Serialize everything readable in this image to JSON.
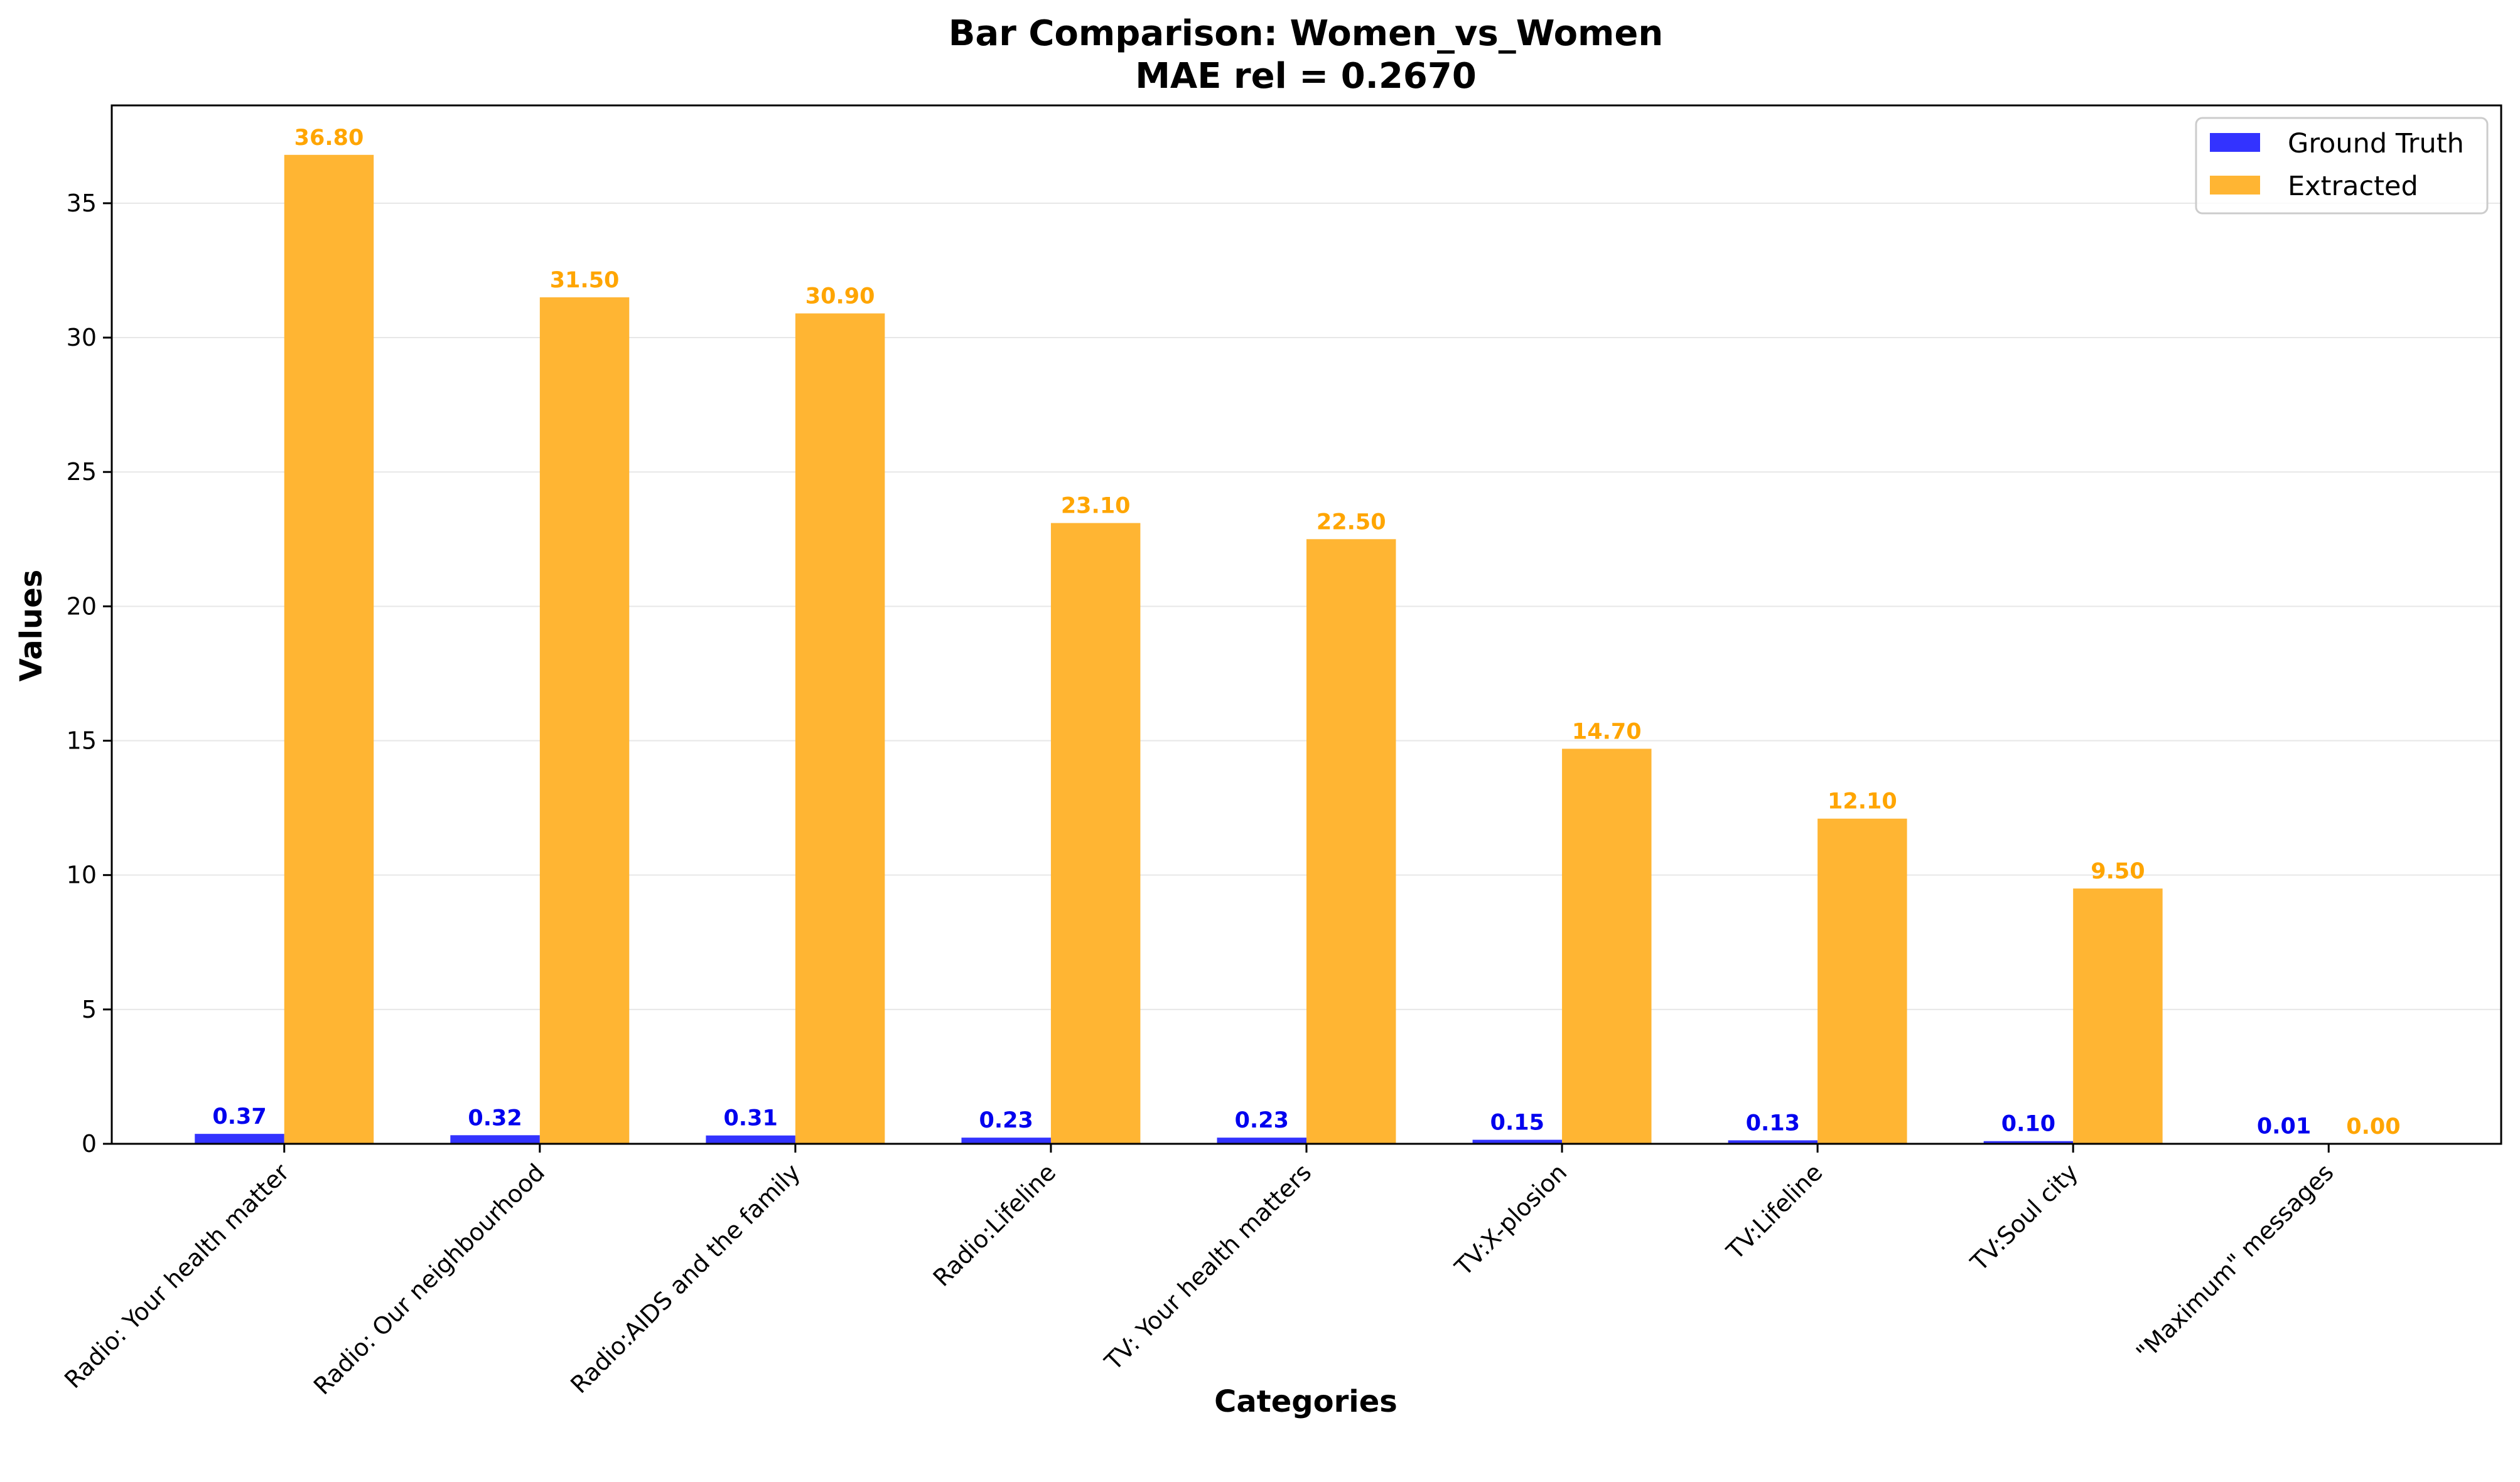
{
  "chart_data": {
    "type": "bar",
    "title": "Bar Comparison: Women_vs_Women",
    "subtitle": "MAE rel = 0.2670",
    "xlabel": "Categories",
    "ylabel": "Values",
    "ylim": [
      0,
      38.64
    ],
    "yticks": [
      0,
      5,
      10,
      15,
      20,
      25,
      30,
      35
    ],
    "grid": true,
    "legend_position": "top-right",
    "categories": [
      "Radio: Your health matter",
      "Radio: Our neighbourhood",
      "Radio:AIDS and the family",
      "Radio:Lifeline",
      "TV: Your health matters",
      "TV:X-plosion",
      "TV:Lifeline",
      "TV:Soul city",
      "\"Maximum\" messages"
    ],
    "series": [
      {
        "name": "Ground Truth",
        "color": "#3333ff",
        "label_color": "#0000ee",
        "values": [
          0.37,
          0.32,
          0.31,
          0.23,
          0.23,
          0.15,
          0.13,
          0.1,
          0.01
        ],
        "value_labels": [
          "0.37",
          "0.32",
          "0.31",
          "0.23",
          "0.23",
          "0.15",
          "0.13",
          "0.10",
          "0.01"
        ]
      },
      {
        "name": "Extracted",
        "color": "#ffb533",
        "label_color": "#ffa500",
        "values": [
          36.8,
          31.5,
          30.9,
          23.1,
          22.5,
          14.7,
          12.1,
          9.5,
          0.0
        ],
        "value_labels": [
          "36.80",
          "31.50",
          "30.90",
          "23.10",
          "22.50",
          "14.70",
          "12.10",
          "9.50",
          "0.00"
        ]
      }
    ]
  }
}
